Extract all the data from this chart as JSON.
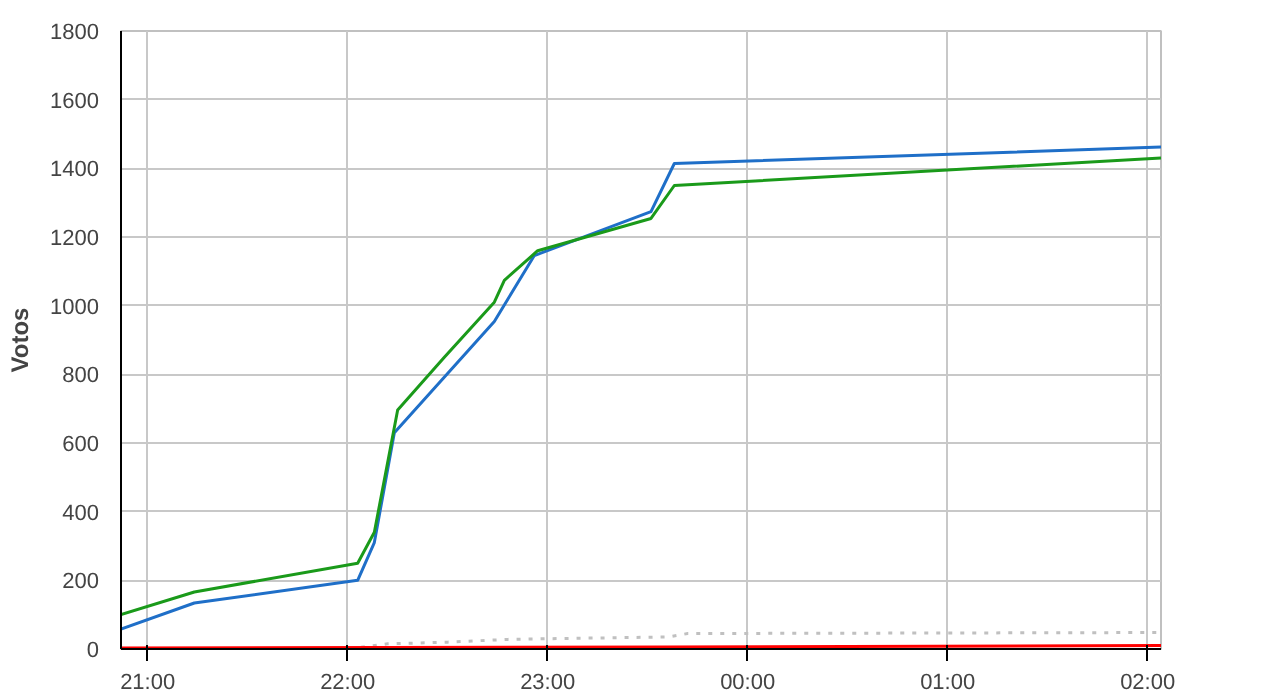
{
  "chart_data": {
    "type": "line",
    "ylabel": "Votos",
    "xlim": [
      "2000-01-01T20:52",
      "2000-01-02T02:04"
    ],
    "ylim": [
      0,
      1800
    ],
    "xticks": [
      {
        "value": "2000-01-01T21:00",
        "label": "21:00"
      },
      {
        "value": "2000-01-01T22:00",
        "label": "22:00"
      },
      {
        "value": "2000-01-01T23:00",
        "label": "23:00"
      },
      {
        "value": "2000-01-02T00:00",
        "label": "00:00"
      },
      {
        "value": "2000-01-02T01:00",
        "label": "01:00"
      },
      {
        "value": "2000-01-02T02:00",
        "label": "02:00"
      }
    ],
    "yticks": [
      0,
      200,
      400,
      600,
      800,
      1000,
      1200,
      1400,
      1600,
      1800
    ],
    "grid": true,
    "marker": "none",
    "series": [
      {
        "color": "#c0c0c0",
        "line_style": "dotted",
        "x": [
          "2000-01-01T20:52",
          "2000-01-01T22:00",
          "2000-01-01T22:12",
          "2000-01-01T22:30",
          "2000-01-01T22:48",
          "2000-01-01T23:00",
          "2000-01-01T23:36",
          "2000-01-01T23:42",
          "2000-01-02T02:04"
        ],
        "values": [
          0,
          0,
          15,
          20,
          28,
          30,
          35,
          45,
          48
        ]
      },
      {
        "color": "#ff0000",
        "x": [
          "2000-01-01T20:52",
          "2000-01-01T23:36",
          "2000-01-02T02:04"
        ],
        "values": [
          3,
          6,
          10
        ]
      },
      {
        "color": "#1f6fc8",
        "x": [
          "2000-01-01T20:52",
          "2000-01-01T21:14",
          "2000-01-01T22:03",
          "2000-01-01T22:08",
          "2000-01-01T22:14",
          "2000-01-01T22:44",
          "2000-01-01T22:56",
          "2000-01-01T23:31",
          "2000-01-01T23:38",
          "2000-01-02T02:04"
        ],
        "values": [
          58,
          134,
          200,
          310,
          630,
          954,
          1146,
          1274,
          1414,
          1462
        ]
      },
      {
        "color": "#1a9a1a",
        "x": [
          "2000-01-01T20:52",
          "2000-01-01T21:14",
          "2000-01-01T22:03",
          "2000-01-01T22:08",
          "2000-01-01T22:15",
          "2000-01-01T22:29",
          "2000-01-01T22:44",
          "2000-01-01T22:47",
          "2000-01-01T22:57",
          "2000-01-01T23:31",
          "2000-01-01T23:38",
          "2000-01-02T02:04"
        ],
        "values": [
          100,
          166,
          250,
          340,
          696,
          850,
          1010,
          1074,
          1160,
          1254,
          1350,
          1430
        ]
      }
    ]
  }
}
